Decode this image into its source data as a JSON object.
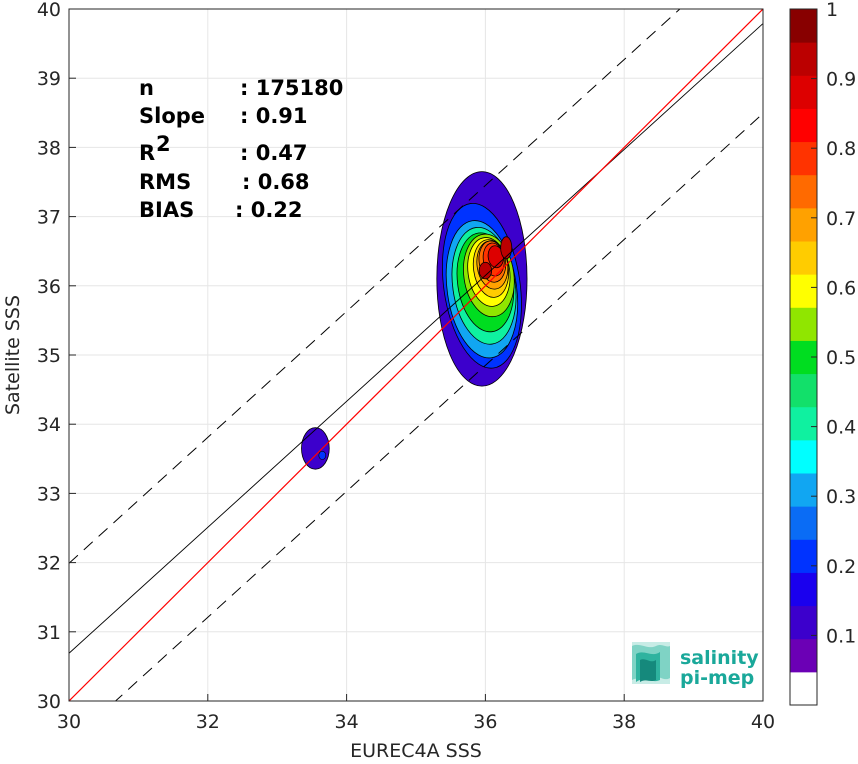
{
  "chart_data": {
    "type": "heatmap",
    "xlabel": "EUREC4A SSS",
    "ylabel": "Satellite SSS",
    "xlim": [
      30,
      40
    ],
    "ylim": [
      30,
      40
    ],
    "xticks": [
      "30",
      "32",
      "34",
      "36",
      "38",
      "40"
    ],
    "yticks": [
      "30",
      "31",
      "32",
      "33",
      "34",
      "35",
      "36",
      "37",
      "38",
      "39",
      "40"
    ],
    "grid": true,
    "stats": [
      {
        "label": "n",
        "value": ": 175180"
      },
      {
        "label": "Slope",
        "value": ": 0.91"
      },
      {
        "label": "R",
        "sup": "2",
        "value": ": 0.47"
      },
      {
        "label": "RMS",
        "value": ": 0.68"
      },
      {
        "label": "BIAS",
        "value": ": 0.22"
      }
    ],
    "lines": {
      "one_to_one": {
        "color": "#ff0000",
        "x": [
          30,
          40
        ],
        "y": [
          30,
          40
        ]
      },
      "regression": {
        "color": "#000000",
        "slope": 0.91,
        "intercept_at_30": 30.69
      },
      "bounds_offset": 1.3
    },
    "colorbar": {
      "ticks": [
        "0.1",
        "0.2",
        "0.3",
        "0.4",
        "0.5",
        "0.6",
        "0.7",
        "0.8",
        "0.9",
        "1"
      ],
      "range": [
        0,
        1
      ],
      "colors": [
        "#ffffff",
        "#6b00b5",
        "#3c00cc",
        "#1a00ee",
        "#0033ff",
        "#0a6cf5",
        "#11a6f2",
        "#00ffff",
        "#0ff1a0",
        "#12e06a",
        "#00dd20",
        "#90e600",
        "#ffff00",
        "#ffcc00",
        "#ffa100",
        "#ff6a00",
        "#ff3300",
        "#ff0000",
        "#dd0000",
        "#bb0000",
        "#880000"
      ]
    },
    "density_levels": [
      {
        "level": 0.05,
        "color": "#3c00cc",
        "center": [
          35.95,
          36.1
        ],
        "radii": [
          0.65,
          1.55
        ]
      },
      {
        "level": 0.2,
        "color": "#0033ff",
        "center": [
          35.95,
          36.0
        ],
        "radii": [
          0.55,
          1.2
        ]
      },
      {
        "level": 0.3,
        "color": "#11a6f2",
        "center": [
          35.95,
          35.95
        ],
        "radii": [
          0.5,
          1.0
        ]
      },
      {
        "level": 0.4,
        "color": "#0ff1a0",
        "center": [
          35.98,
          36.0
        ],
        "radii": [
          0.45,
          0.85
        ]
      },
      {
        "level": 0.5,
        "color": "#00dd20",
        "center": [
          36.0,
          36.05
        ],
        "radii": [
          0.4,
          0.72
        ]
      },
      {
        "level": 0.6,
        "color": "#90e600",
        "center": [
          36.05,
          36.15
        ],
        "radii": [
          0.36,
          0.6
        ]
      },
      {
        "level": 0.65,
        "color": "#ffff00",
        "center": [
          36.05,
          36.2
        ],
        "radii": [
          0.3,
          0.5
        ]
      },
      {
        "level": 0.7,
        "color": "#ffcc00",
        "center": [
          36.08,
          36.25
        ],
        "radii": [
          0.25,
          0.42
        ]
      },
      {
        "level": 0.75,
        "color": "#ffa100",
        "center": [
          36.1,
          36.3
        ],
        "radii": [
          0.22,
          0.35
        ]
      },
      {
        "level": 0.8,
        "color": "#ff6a00",
        "center": [
          36.1,
          36.35
        ],
        "radii": [
          0.19,
          0.3
        ]
      },
      {
        "level": 0.85,
        "color": "#ff3300",
        "center": [
          36.12,
          36.38
        ],
        "radii": [
          0.15,
          0.24
        ]
      },
      {
        "level": 0.9,
        "color": "#dd0000",
        "center": [
          36.15,
          36.42
        ],
        "radii": [
          0.11,
          0.16
        ]
      }
    ],
    "peaks": [
      {
        "level": 1.0,
        "color": "#bb0000",
        "center": [
          36.0,
          36.22
        ],
        "radii": [
          0.09,
          0.12
        ]
      },
      {
        "level": 1.0,
        "color": "#bb0000",
        "center": [
          36.3,
          36.55
        ],
        "radii": [
          0.08,
          0.16
        ]
      }
    ],
    "minor_blob": {
      "color": "#3c00cc",
      "center": [
        33.55,
        33.65
      ],
      "radii": [
        0.2,
        0.3
      ],
      "inner_color": "#0033ff",
      "inner_center": [
        33.65,
        33.55
      ],
      "inner_radii": [
        0.05,
        0.06
      ]
    }
  },
  "logo": {
    "line1": "salinity",
    "line2": "pi-mep"
  }
}
